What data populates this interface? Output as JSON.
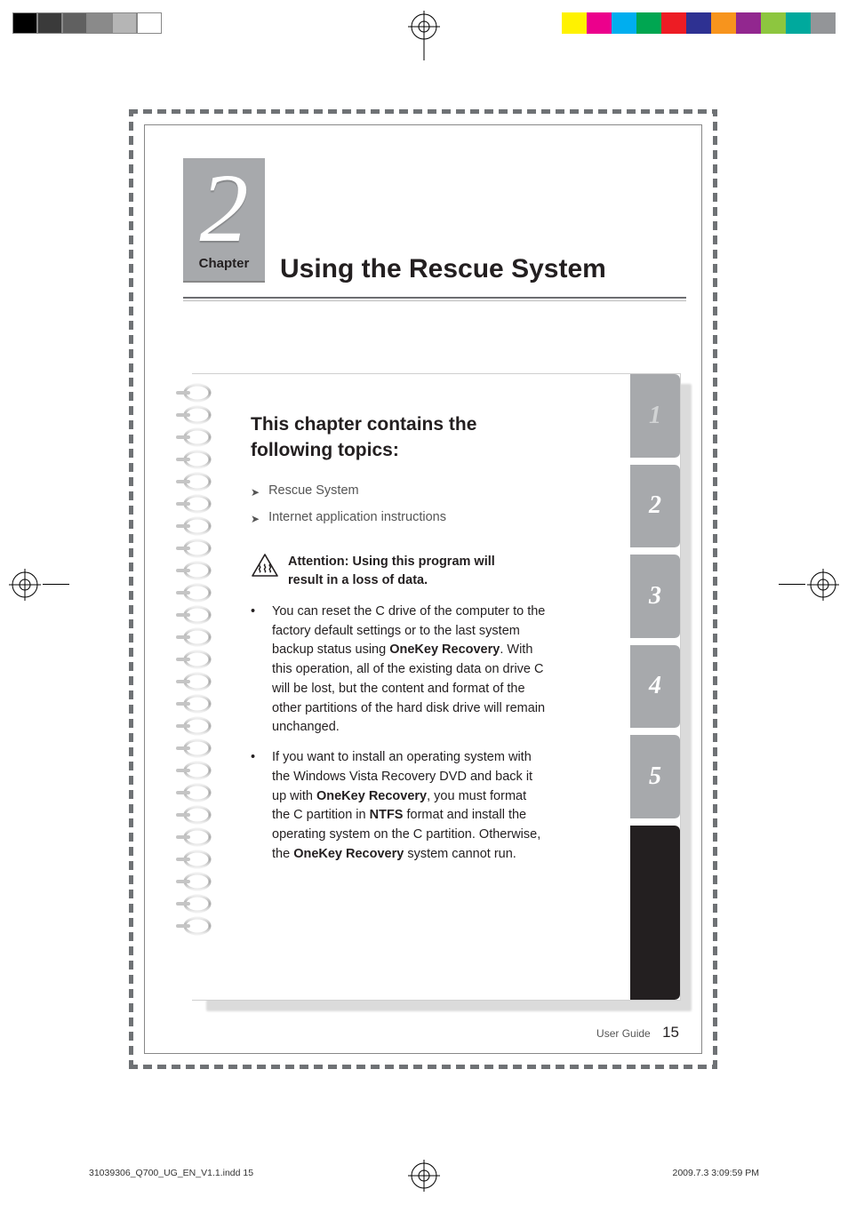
{
  "printerBars": {
    "left": [
      "#000000",
      "#3a3a3a",
      "#606060",
      "#8a8a8a",
      "#b5b5b5",
      "#ffffff"
    ],
    "right": [
      "#fff200",
      "#ec008c",
      "#00aeef",
      "#00a651",
      "#ed1c24",
      "#2e3192",
      "#f7941d",
      "#92278f",
      "#8dc63f",
      "#00a99d",
      "#939598"
    ]
  },
  "chapter": {
    "number": "2",
    "label": "Chapter",
    "title": "Using the Rescue System"
  },
  "topicsHeading": "This chapter contains the following topics:",
  "topics": [
    "Rescue System",
    "Internet application instructions"
  ],
  "attention": "Attention: Using this program will result in a loss of data.",
  "bullets": [
    {
      "pre": "You can reset the C drive of the computer to the factory default settings or to the last system backup status using ",
      "b1": "OneKey Recovery",
      "post": ". With this operation, all of the existing data on drive C will be lost, but the content and format of the other partitions of the hard disk drive will remain unchanged."
    },
    {
      "pre": "If you want to install an operating system with the Windows Vista Recovery DVD and back it up with ",
      "b1": "OneKey Recovery",
      "mid": ", you must format the C partition in ",
      "b2": "NTFS",
      "mid2": " format and install the operating system on the C partition. Otherwise, the ",
      "b3": "OneKey Recovery",
      "post": " system cannot run."
    }
  ],
  "tabs": [
    "1",
    "2",
    "3",
    "4",
    "5"
  ],
  "activeTab": 0,
  "footer": {
    "label": "User Guide",
    "page": "15"
  },
  "meta": {
    "file": "31039306_Q700_UG_EN_V1.1.indd   15",
    "stamp": "2009.7.3   3:09:59 PM"
  }
}
